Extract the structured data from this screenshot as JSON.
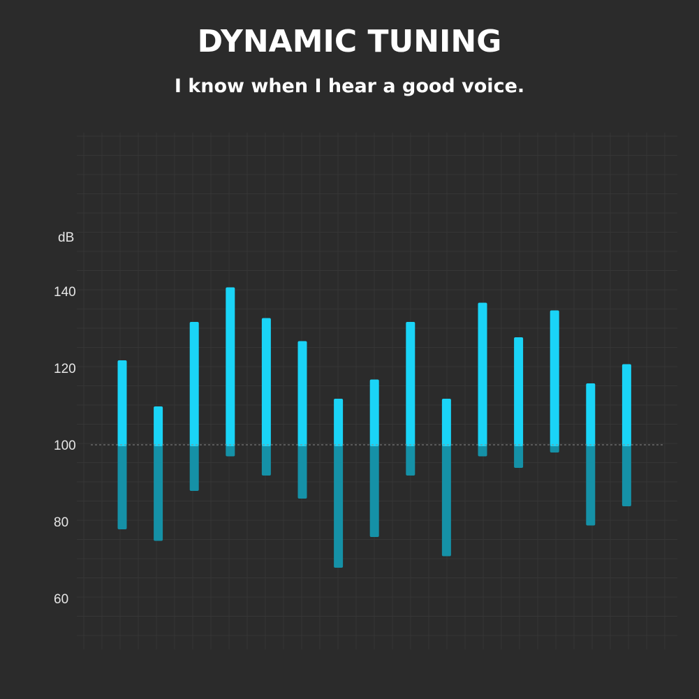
{
  "header": {
    "title": "DYNAMIC TUNING",
    "subtitle": "I know when I hear a good voice."
  },
  "colors": {
    "background": "#2b2b2b",
    "bar_upper": "#1ad4f7",
    "bar_lower": "#1591a7",
    "grid": "#363636",
    "reference_line": "#8a8a8a"
  },
  "chart_data": {
    "type": "bar",
    "title": "",
    "xlabel": "",
    "ylabel": "dB",
    "ylim": [
      60,
      145
    ],
    "yticks": [
      140,
      120,
      100,
      80,
      60
    ],
    "baseline": 100,
    "baseline_style": "dashed",
    "grid": true,
    "series": [
      {
        "high": 122,
        "low": 78
      },
      {
        "high": 110,
        "low": 75
      },
      {
        "high": 132,
        "low": 88
      },
      {
        "high": 141,
        "low": 97
      },
      {
        "high": 133,
        "low": 92
      },
      {
        "high": 127,
        "low": 86
      },
      {
        "high": 112,
        "low": 68
      },
      {
        "high": 117,
        "low": 76
      },
      {
        "high": 132,
        "low": 92
      },
      {
        "high": 112,
        "low": 71
      },
      {
        "high": 137,
        "low": 97
      },
      {
        "high": 128,
        "low": 94
      },
      {
        "high": 135,
        "low": 98
      },
      {
        "high": 116,
        "low": 79
      },
      {
        "high": 121,
        "low": 84
      }
    ]
  }
}
